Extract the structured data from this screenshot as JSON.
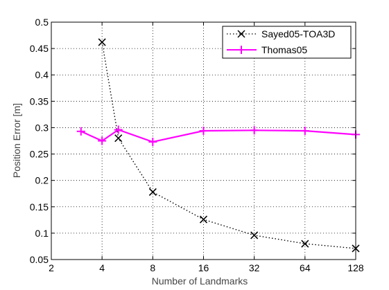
{
  "chart_data": {
    "type": "line",
    "x_scale": "log2",
    "xlabel": "Number of Landmarks",
    "ylabel": "Position Error [m]",
    "xlim": [
      2,
      128
    ],
    "ylim": [
      0.05,
      0.5
    ],
    "x_ticks": [
      2,
      4,
      8,
      16,
      32,
      64,
      128
    ],
    "x_tick_labels": [
      "2",
      "4",
      "8",
      "16",
      "32",
      "64",
      "128"
    ],
    "y_ticks": [
      0.05,
      0.1,
      0.15,
      0.2,
      0.25,
      0.3,
      0.35,
      0.4,
      0.45,
      0.5
    ],
    "y_tick_labels": [
      "0.05",
      "0.1",
      "0.15",
      "0.2",
      "0.25",
      "0.3",
      "0.35",
      "0.4",
      "0.45",
      "0.5"
    ],
    "grid": true,
    "legend_position": "top-right",
    "series": [
      {
        "name": "Sayed05-TOA3D",
        "color": "#000000",
        "line_style": "dotted",
        "marker": "x",
        "x": [
          4,
          5,
          8,
          16,
          32,
          64,
          128
        ],
        "y": [
          0.462,
          0.28,
          0.178,
          0.126,
          0.096,
          0.08,
          0.071
        ]
      },
      {
        "name": "Thomas05",
        "color": "#ff00ff",
        "line_style": "solid",
        "marker": "+",
        "x": [
          3,
          4,
          5,
          8,
          16,
          32,
          64,
          128
        ],
        "y": [
          0.293,
          0.275,
          0.296,
          0.273,
          0.294,
          0.295,
          0.294,
          0.287
        ]
      }
    ]
  }
}
